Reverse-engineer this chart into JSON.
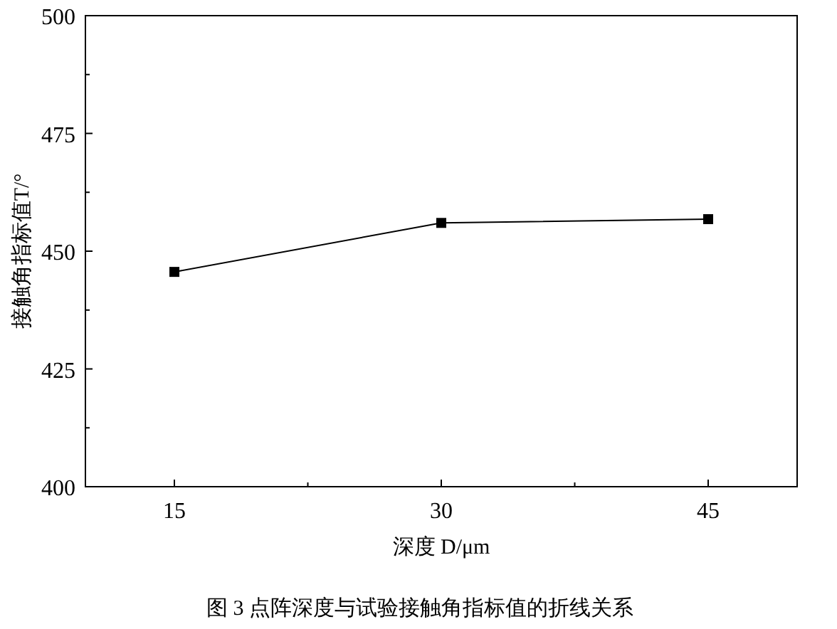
{
  "chart_data": {
    "type": "line",
    "title": "图 3  点阵深度与试验接触角指标值的折线关系",
    "xlabel": "深度 D/μm",
    "ylabel": "接触角指标值T/°",
    "x": [
      15,
      30,
      45
    ],
    "series": [
      {
        "color": "#000000",
        "values": [
          445.6,
          456,
          456.8
        ]
      }
    ],
    "xlim": [
      10,
      50
    ],
    "xticks": [
      15,
      {
        "value": 22.5,
        "label": null
      },
      30,
      {
        "value": 37.5,
        "label": null
      },
      45
    ],
    "ylim": [
      400,
      500
    ],
    "yticks": [
      400,
      {
        "value": 412.5,
        "label": null
      },
      425,
      {
        "value": 437.5,
        "label": null
      },
      450,
      {
        "value": 462.5,
        "label": null
      },
      475,
      {
        "value": 487.5,
        "label": null
      },
      500
    ],
    "marker": "square",
    "line_style": "solid",
    "grid": false
  }
}
